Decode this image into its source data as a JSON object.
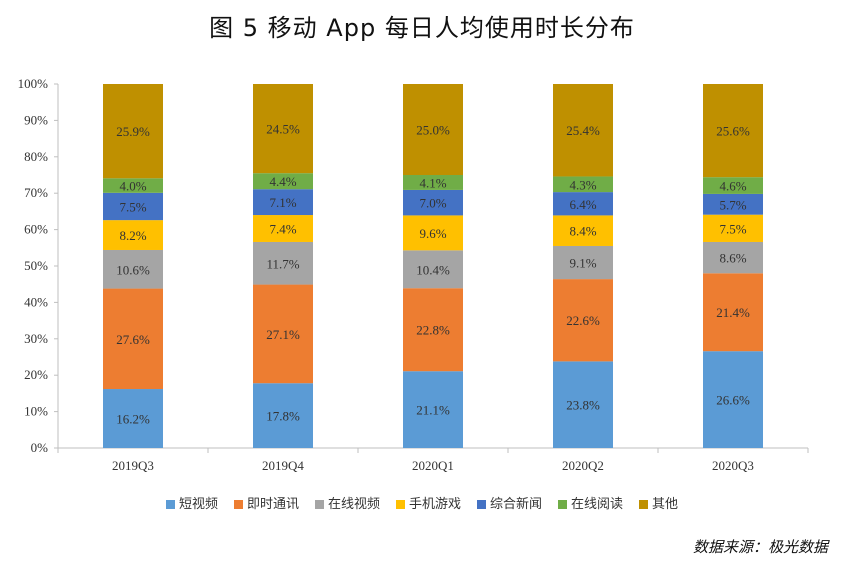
{
  "title": "图 5   移动 App 每日人均使用时长分布",
  "source": "数据来源：极光数据",
  "chart_data": {
    "type": "bar",
    "stacked": "percent",
    "categories": [
      "2019Q3",
      "2019Q4",
      "2020Q1",
      "2020Q2",
      "2020Q3"
    ],
    "ylim": [
      0,
      100
    ],
    "yticks": [
      "0%",
      "10%",
      "20%",
      "30%",
      "40%",
      "50%",
      "60%",
      "70%",
      "80%",
      "90%",
      "100%"
    ],
    "legend_position": "bottom",
    "series": [
      {
        "name": "短视频",
        "color": "#5B9BD5",
        "values": [
          16.2,
          17.8,
          21.1,
          23.8,
          26.6
        ]
      },
      {
        "name": "即时通讯",
        "color": "#ED7D31",
        "values": [
          27.6,
          27.1,
          22.8,
          22.6,
          21.4
        ]
      },
      {
        "name": "在线视频",
        "color": "#A5A5A5",
        "values": [
          10.6,
          11.7,
          10.4,
          9.1,
          8.6
        ]
      },
      {
        "name": "手机游戏",
        "color": "#FFC000",
        "values": [
          8.2,
          7.4,
          9.6,
          8.4,
          7.5
        ]
      },
      {
        "name": "综合新闻",
        "color": "#4472C4",
        "values": [
          7.5,
          7.1,
          7.0,
          6.4,
          5.7
        ]
      },
      {
        "name": "在线阅读",
        "color": "#70AD47",
        "values": [
          4.0,
          4.4,
          4.1,
          4.3,
          4.6
        ]
      },
      {
        "name": "其他",
        "color": "#BF9000",
        "values": [
          25.9,
          24.5,
          25.0,
          25.4,
          25.6
        ]
      }
    ]
  }
}
